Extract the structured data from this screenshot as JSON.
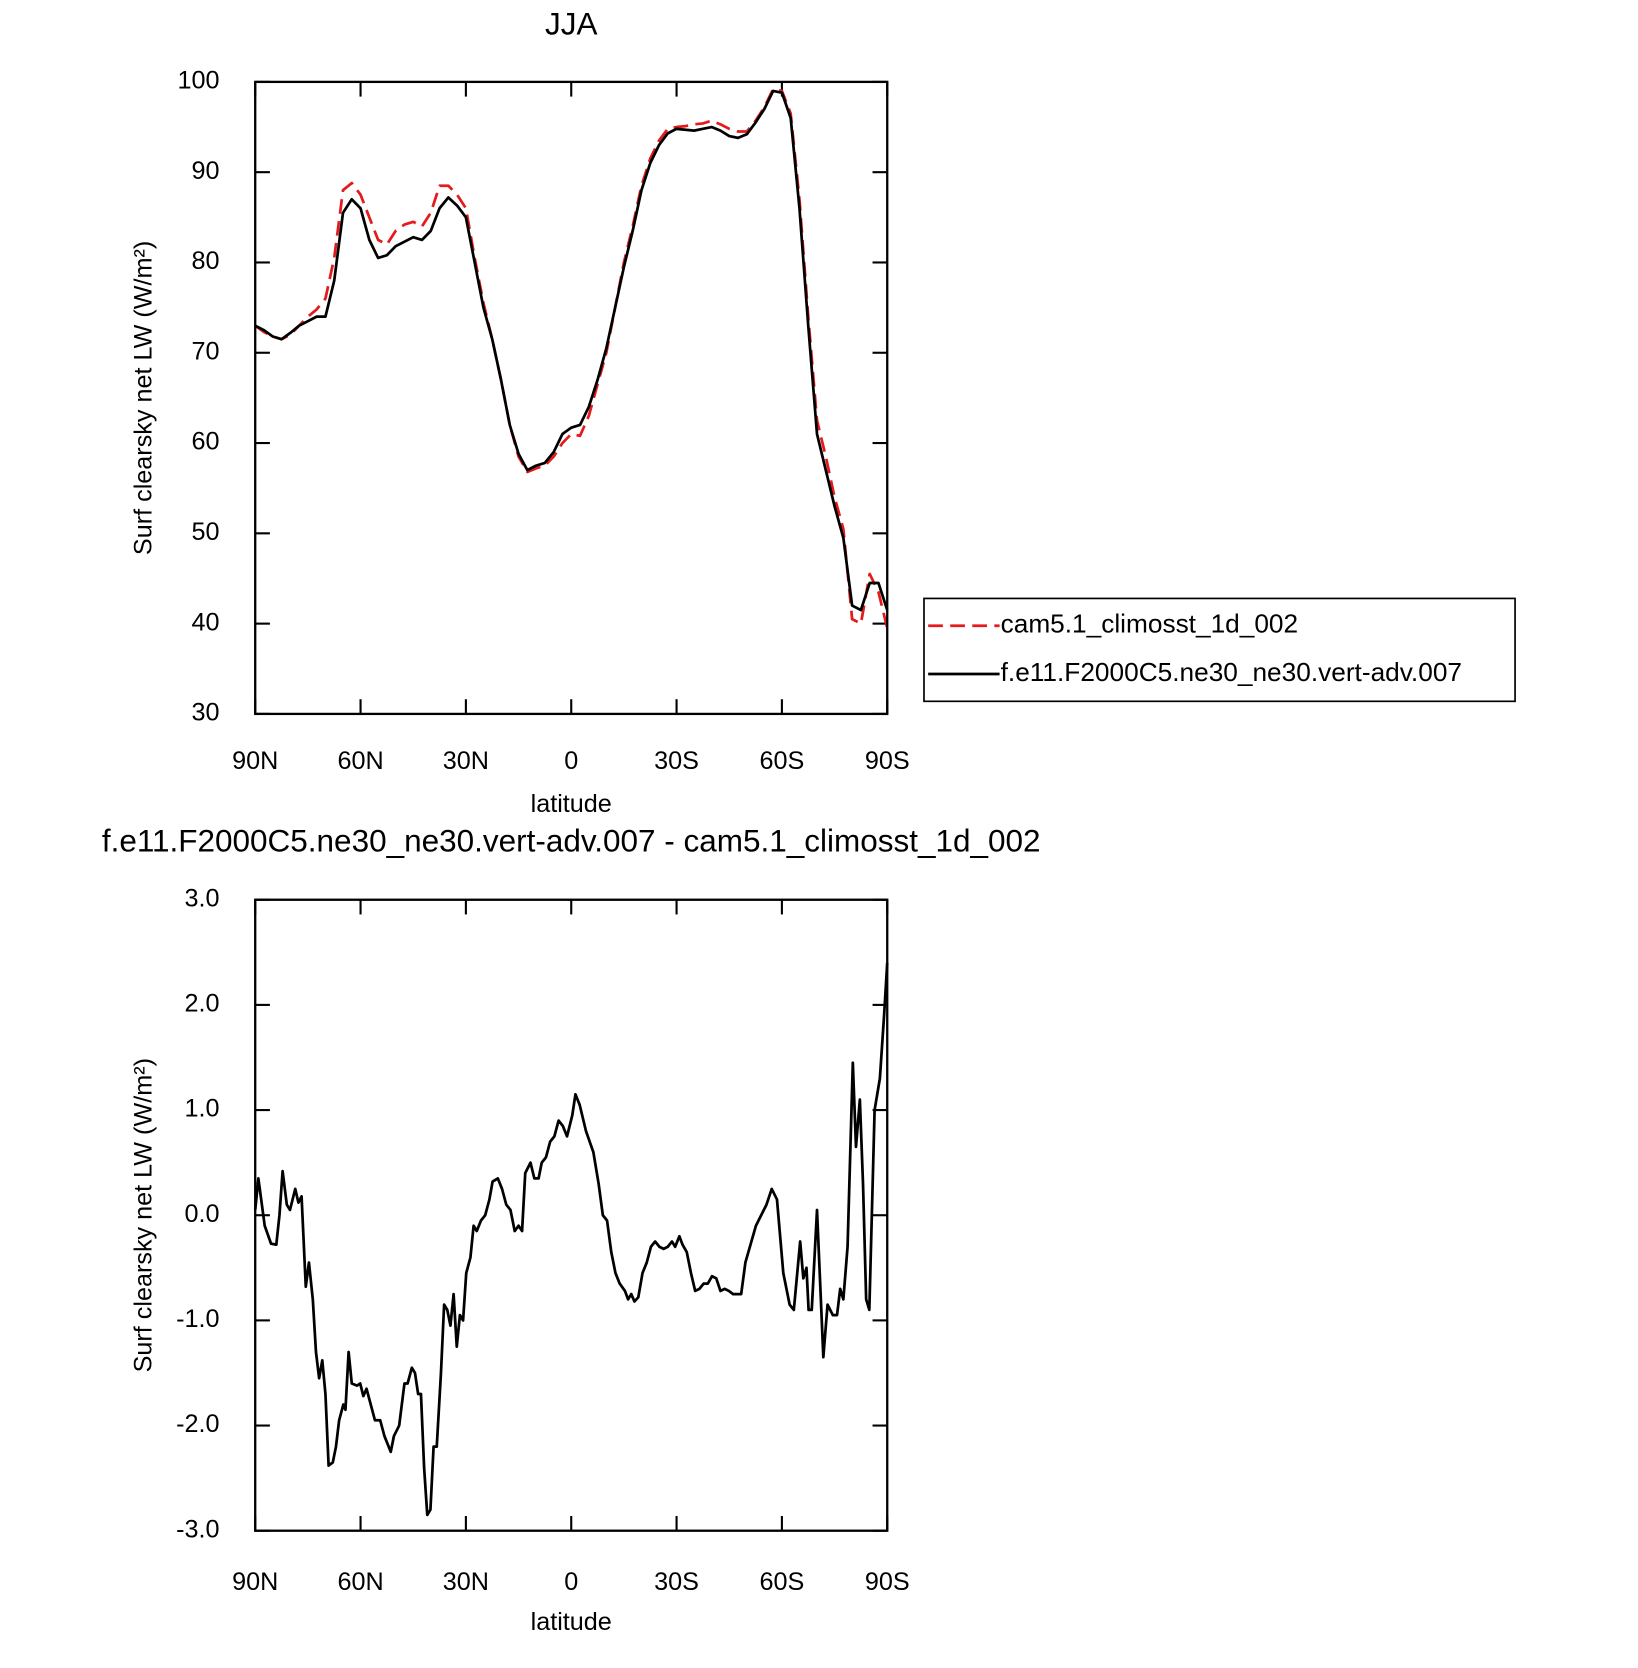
{
  "chart_data": [
    {
      "type": "line",
      "title": "JJA",
      "x_label": "latitude",
      "y_label": "Surf clearsky net LW (W/m²)",
      "xlim": [
        90,
        -90
      ],
      "xticks": [
        {
          "value": 90,
          "label": "90N"
        },
        {
          "value": 60,
          "label": "60N"
        },
        {
          "value": 30,
          "label": "30N"
        },
        0,
        {
          "value": -30,
          "label": "30S"
        },
        {
          "value": -60,
          "label": "60S"
        },
        {
          "value": -90,
          "label": "90S"
        }
      ],
      "ylim": [
        30,
        100
      ],
      "yticks": [
        30,
        40,
        50,
        60,
        70,
        80,
        90,
        100
      ],
      "legend": "right",
      "x": [
        90,
        87.5,
        85,
        82.5,
        80,
        77.5,
        75,
        72.5,
        70,
        67.5,
        65,
        62.5,
        60,
        57.5,
        55,
        52.5,
        50,
        47.5,
        45,
        42.5,
        40,
        37.5,
        35,
        32.5,
        30,
        27.5,
        25,
        22.5,
        20,
        17.5,
        15,
        12.5,
        10,
        7.5,
        5,
        2.5,
        0,
        -2.5,
        -5,
        -7.5,
        -10,
        -12.5,
        -15,
        -17.5,
        -20,
        -22.5,
        -25,
        -27.5,
        -30,
        -32.5,
        -35,
        -37.5,
        -40,
        -42.5,
        -45,
        -47.5,
        -50,
        -52.5,
        -55,
        -57.5,
        -60,
        -62.5,
        -65,
        -67.5,
        -70,
        -72.5,
        -75,
        -77.5,
        -80,
        -82.5,
        -85,
        -87.5,
        -90
      ],
      "series": [
        {
          "name": "cam5.1_climosst_1d_002",
          "color": "#e41a1c",
          "linestyle": "dashed",
          "values": [
            73,
            72.3,
            71.8,
            71.5,
            72,
            73,
            74,
            74.8,
            76,
            80.5,
            88,
            88.8,
            87.5,
            85,
            82.5,
            82,
            83.5,
            84.2,
            84.5,
            84,
            85.5,
            88.5,
            88.5,
            87.5,
            86,
            80.5,
            75.5,
            71.5,
            67,
            62,
            58.5,
            56.8,
            57.2,
            57.5,
            58.5,
            60,
            61,
            60.8,
            63,
            66.5,
            70,
            75,
            80,
            84,
            88.5,
            91.5,
            93.5,
            94.8,
            95,
            95.1,
            95.3,
            95.4,
            95.7,
            95.3,
            94.8,
            94.5,
            94.5,
            95.7,
            97.2,
            99.2,
            99,
            96.5,
            87,
            74,
            62.5,
            58.5,
            54,
            50.5,
            40.5,
            40,
            45.5,
            43.5,
            39.5
          ]
        },
        {
          "name": "f.e11.F2000C5.ne30_ne30.vert-adv.007",
          "color": "#000000",
          "linestyle": "solid",
          "values": [
            73,
            72.5,
            71.8,
            71.5,
            72.2,
            73,
            73.5,
            74,
            74,
            78,
            85.5,
            87,
            86,
            82.5,
            80.5,
            80.8,
            81.8,
            82.3,
            82.8,
            82.5,
            83.5,
            86,
            87.2,
            86.3,
            85,
            80,
            75,
            71.5,
            67,
            62,
            58.8,
            57,
            57.5,
            57.8,
            59,
            61,
            61.7,
            62,
            64,
            67,
            70.5,
            75,
            79.5,
            83.5,
            88,
            91,
            93,
            94.3,
            94.8,
            94.7,
            94.6,
            94.8,
            95,
            94.6,
            94,
            93.8,
            94.2,
            95.5,
            97,
            99,
            98.8,
            96,
            86,
            73,
            61,
            57,
            53,
            49.5,
            42,
            41.5,
            44.5,
            44.5,
            41.5
          ]
        }
      ]
    },
    {
      "type": "line",
      "title": "f.e11.F2000C5.ne30_ne30.vert-adv.007 - cam5.1_climosst_1d_002",
      "x_label": "latitude",
      "y_label": "Surf clearsky net LW (W/m²)",
      "xlim": [
        90,
        -90
      ],
      "xticks": [
        {
          "value": 90,
          "label": "90N"
        },
        {
          "value": 60,
          "label": "60N"
        },
        {
          "value": 30,
          "label": "30N"
        },
        0,
        {
          "value": -30,
          "label": "30S"
        },
        {
          "value": -60,
          "label": "60S"
        },
        {
          "value": -90,
          "label": "90S"
        }
      ],
      "ylim": [
        -3,
        3
      ],
      "yticks": [
        {
          "value": -3,
          "label": "-3.0"
        },
        {
          "value": -2,
          "label": "-2.0"
        },
        {
          "value": -1,
          "label": "-1.0"
        },
        {
          "value": 0,
          "label": "0.0"
        },
        {
          "value": 1,
          "label": "1.0"
        },
        {
          "value": 2,
          "label": "2.0"
        },
        {
          "value": 3,
          "label": "3.0"
        }
      ],
      "x": [
        90,
        89.1,
        87.3,
        85.5,
        84,
        83.1,
        82.2,
        81,
        80.1,
        78.6,
        77.7,
        76.8,
        75.6,
        74.7,
        73.6,
        72.7,
        71.8,
        70.9,
        70,
        69.1,
        67.9,
        67,
        66.1,
        64.9,
        64.3,
        63.4,
        62.5,
        61,
        60.1,
        59.2,
        58.3,
        57.1,
        55.9,
        54.4,
        53.2,
        51.4,
        50.5,
        49,
        47.5,
        46.6,
        45.4,
        44.5,
        43.6,
        42.8,
        41.9,
        41,
        40.1,
        39.2,
        38.3,
        37.1,
        36.2,
        35.3,
        34.4,
        33.5,
        32.6,
        31.7,
        30.8,
        29.9,
        28.7,
        27.8,
        26.9,
        25.7,
        24.5,
        23.3,
        22.4,
        20.9,
        19.7,
        18.5,
        17.3,
        16.1,
        15,
        14,
        13.1,
        11.6,
        10.5,
        9.3,
        8.4,
        7.2,
        6,
        4.8,
        3.6,
        2.4,
        1.2,
        -0.3,
        -1.2,
        -2.4,
        -4.2,
        -6.3,
        -7.8,
        -9,
        -10.2,
        -11.4,
        -12.6,
        -13.8,
        -15.3,
        -16.2,
        -17.1,
        -18,
        -19.1,
        -20.3,
        -21.5,
        -22.7,
        -23.9,
        -25.1,
        -26.3,
        -27.5,
        -28.7,
        -29.6,
        -30.8,
        -31.7,
        -32.9,
        -34.1,
        -35.3,
        -36.5,
        -37.7,
        -38.9,
        -40.1,
        -41.3,
        -42.5,
        -43.7,
        -44.9,
        -46.1,
        -47.3,
        -48.4,
        -49.6,
        -52.6,
        -55.6,
        -57.1,
        -58.6,
        -60.4,
        -62.2,
        -63.4,
        -65.2,
        -66.1,
        -67,
        -67.6,
        -68.5,
        -70,
        -71.8,
        -73,
        -74.5,
        -75.7,
        -76.6,
        -77.5,
        -78.7,
        -80.2,
        -81.1,
        -82.2,
        -83.1,
        -84,
        -84.9,
        -86.4,
        -87.9,
        -89.1,
        -90
      ],
      "series": [
        {
          "color": "#000000",
          "linestyle": "solid",
          "values": [
            0.05,
            0.35,
            -0.1,
            -0.27,
            -0.28,
            0,
            0.42,
            0.1,
            0.05,
            0.25,
            0.12,
            0.18,
            -0.68,
            -0.45,
            -0.8,
            -1.3,
            -1.55,
            -1.38,
            -1.7,
            -2.38,
            -2.35,
            -2.2,
            -1.95,
            -1.8,
            -1.85,
            -1.3,
            -1.6,
            -1.62,
            -1.6,
            -1.72,
            -1.65,
            -1.8,
            -1.95,
            -1.95,
            -2.1,
            -2.25,
            -2.1,
            -2,
            -1.6,
            -1.6,
            -1.45,
            -1.5,
            -1.7,
            -1.7,
            -2.4,
            -2.85,
            -2.8,
            -2.2,
            -2.2,
            -1.5,
            -0.85,
            -0.9,
            -1.05,
            -0.75,
            -1.25,
            -0.95,
            -1,
            -0.55,
            -0.4,
            -0.1,
            -0.15,
            -0.05,
            0,
            0.15,
            0.32,
            0.35,
            0.25,
            0.1,
            0.05,
            -0.15,
            -0.1,
            -0.15,
            0.4,
            0.5,
            0.35,
            0.35,
            0.5,
            0.55,
            0.7,
            0.75,
            0.9,
            0.85,
            0.75,
            0.95,
            1.15,
            1.05,
            0.8,
            0.6,
            0.3,
            0,
            -0.05,
            -0.35,
            -0.55,
            -0.65,
            -0.72,
            -0.8,
            -0.75,
            -0.82,
            -0.78,
            -0.55,
            -0.45,
            -0.3,
            -0.25,
            -0.3,
            -0.32,
            -0.3,
            -0.25,
            -0.3,
            -0.2,
            -0.28,
            -0.35,
            -0.55,
            -0.72,
            -0.7,
            -0.65,
            -0.65,
            -0.58,
            -0.6,
            -0.72,
            -0.7,
            -0.72,
            -0.75,
            -0.75,
            -0.75,
            -0.45,
            -0.1,
            0.1,
            0.25,
            0.15,
            -0.55,
            -0.85,
            -0.9,
            -0.25,
            -0.6,
            -0.5,
            -0.9,
            -0.9,
            0.05,
            -1.35,
            -0.85,
            -0.95,
            -0.95,
            -0.7,
            -0.8,
            -0.3,
            1.45,
            0.65,
            1.1,
            0.3,
            -0.8,
            -0.9,
            1,
            1.3,
            1.9,
            2.4
          ]
        }
      ]
    }
  ]
}
